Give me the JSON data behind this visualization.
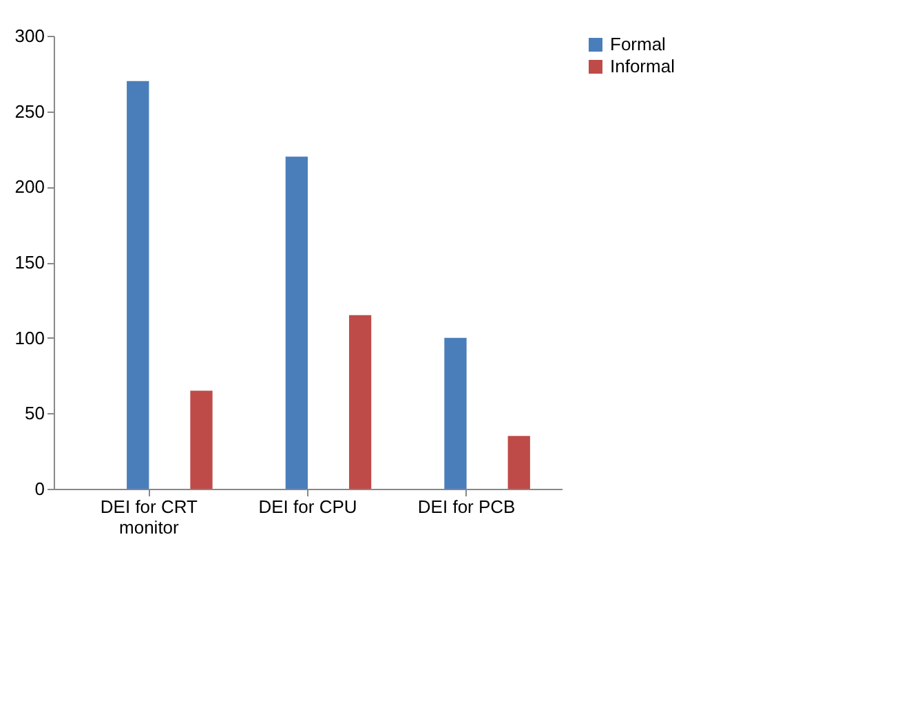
{
  "chart_data": {
    "type": "bar",
    "categories": [
      "DEI for CRT monitor",
      "DEI for CPU",
      "DEI for PCB"
    ],
    "series": [
      {
        "name": "Formal",
        "color": "#4a7ebb",
        "values": [
          270,
          220,
          100
        ]
      },
      {
        "name": "Informal",
        "color": "#be4b48",
        "values": [
          65,
          115,
          35
        ]
      }
    ],
    "ylim": [
      0,
      300
    ],
    "yticks": [
      0,
      50,
      100,
      150,
      200,
      250,
      300
    ],
    "legend": "right",
    "grid": false
  }
}
